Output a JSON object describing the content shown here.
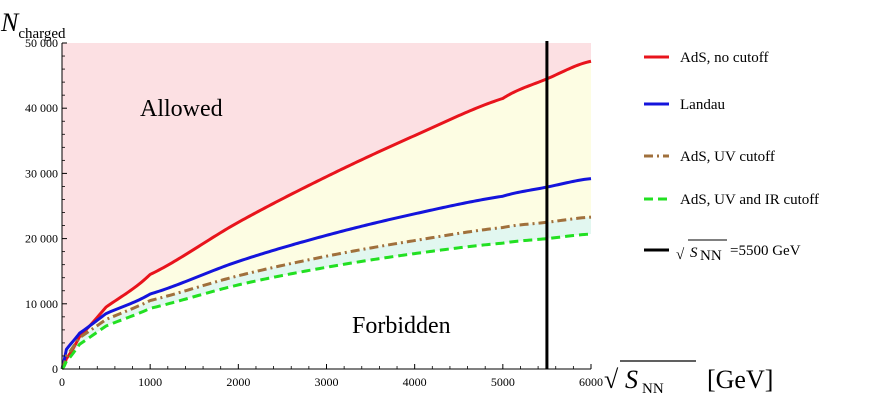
{
  "chart_data": {
    "type": "line",
    "title": "",
    "xlabel": {
      "prefix": "√",
      "main": "S",
      "sub": "NN",
      "unit": "[GeV]"
    },
    "ylabel": {
      "main": "N",
      "sub": "charged"
    },
    "xlim": [
      0,
      6000
    ],
    "ylim": [
      0,
      50000
    ],
    "x_ticks": [
      0,
      1000,
      2000,
      3000,
      4000,
      5000,
      6000
    ],
    "y_ticks": [
      0,
      10000,
      20000,
      30000,
      40000,
      50000
    ],
    "x_tick_labels": [
      "0",
      "1000",
      "2000",
      "3000",
      "4000",
      "5000",
      "6000"
    ],
    "y_tick_labels": [
      "0",
      "10 000",
      "20 000",
      "30 000",
      "40 000",
      "50 000"
    ],
    "grid": false,
    "legend_position": "right",
    "regions": [
      {
        "name": "Allowed",
        "color": "#fce0e3"
      },
      {
        "name": "Forbidden",
        "color": "#ffffff"
      }
    ],
    "band_colors": {
      "upper": "#fdfde3",
      "lower": "#e2f7f0"
    },
    "series": [
      {
        "name": "AdS, no cutoff",
        "color": "#e8141c",
        "dash": "solid",
        "x": [
          0,
          50,
          200,
          500,
          1000,
          2000,
          3000,
          4000,
          5000,
          5500,
          6000
        ],
        "y": [
          0,
          1600,
          5000,
          9500,
          14500,
          22500,
          29500,
          35800,
          41500,
          44500,
          47200
        ]
      },
      {
        "name": "Landau",
        "color": "#1414dc",
        "dash": "solid",
        "x": [
          0,
          50,
          200,
          500,
          1000,
          2000,
          3000,
          4000,
          5000,
          5500,
          6000
        ],
        "y": [
          0,
          3000,
          5500,
          8500,
          11500,
          16500,
          20500,
          23800,
          26500,
          27900,
          29200
        ]
      },
      {
        "name": "AdS, UV cutoff",
        "color": "#a0703c",
        "dash": "dashdot",
        "x": [
          0,
          50,
          200,
          500,
          1000,
          2000,
          3000,
          4000,
          5000,
          5500,
          6000
        ],
        "y": [
          0,
          2000,
          4800,
          7600,
          10500,
          14300,
          17300,
          19700,
          21700,
          22500,
          23300
        ]
      },
      {
        "name": "AdS, UV and IR cutoff",
        "color": "#22e022",
        "dash": "dashed",
        "x": [
          0,
          50,
          200,
          500,
          1000,
          2000,
          3000,
          4000,
          5000,
          5500,
          6000
        ],
        "y": [
          0,
          1200,
          3800,
          6600,
          9300,
          12900,
          15600,
          17700,
          19300,
          20000,
          20700
        ]
      },
      {
        "name": "=5500 GeV",
        "legend_prefix": {
          "root": "√",
          "main": "S",
          "sub": "NN"
        },
        "color": "#000000",
        "dash": "solid",
        "orientation": "vertical",
        "x_value": 5500
      }
    ],
    "annotations": [
      "Allowed",
      "Forbidden"
    ]
  }
}
